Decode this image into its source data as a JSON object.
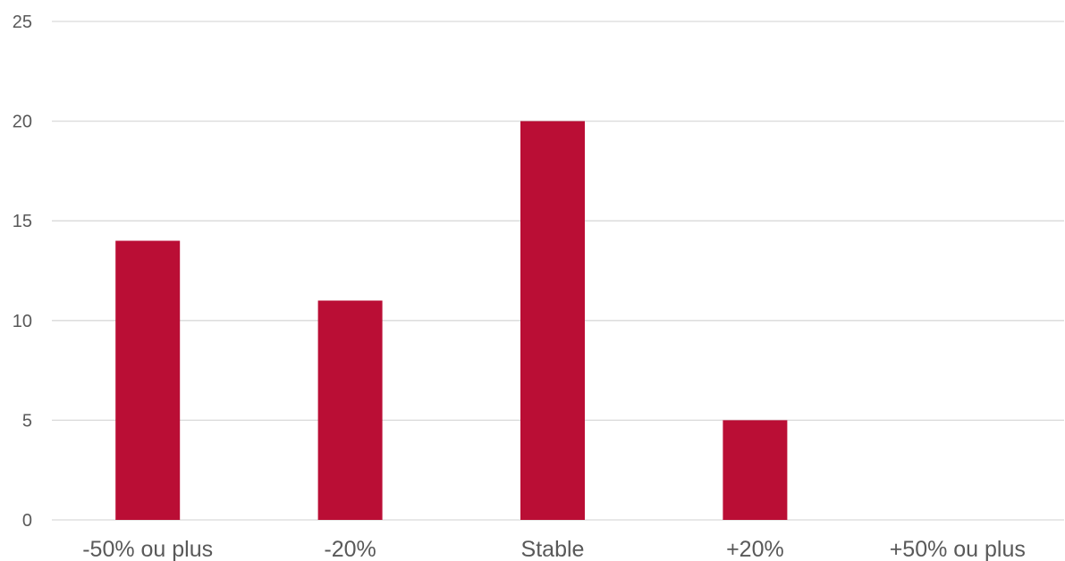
{
  "chart_data": {
    "type": "bar",
    "title": "",
    "xlabel": "",
    "ylabel": "",
    "categories": [
      "-50% ou plus",
      "-20%",
      "Stable",
      "+20%",
      "+50% ou plus"
    ],
    "values": [
      14,
      11,
      20,
      5,
      0
    ],
    "ylim": [
      0,
      25
    ],
    "yticks": [
      0,
      5,
      10,
      15,
      20,
      25
    ],
    "grid": true,
    "legend": "none",
    "bar_color": "#BA0E35",
    "grid_color": "#D9D9D9",
    "text_color": "#595959"
  }
}
